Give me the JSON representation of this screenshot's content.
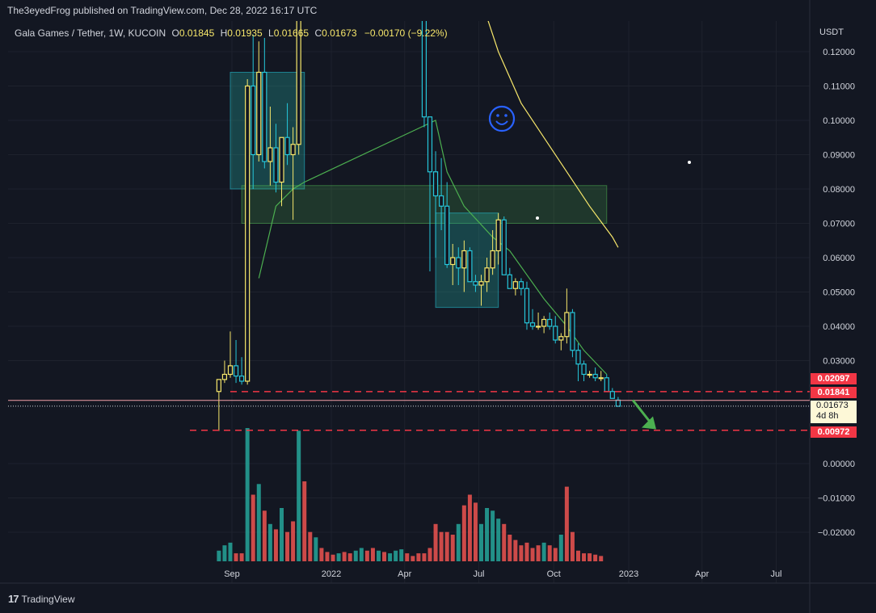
{
  "header": {
    "published": "The3eyedFrog published on TradingView.com, Dec 28, 2022 16:17 UTC",
    "symbol": "Gala Games / Tether, 1W, KUCOIN",
    "open_label": "O",
    "open": "0.01845",
    "high_label": "H",
    "high": "0.01935",
    "low_label": "L",
    "low": "0.01665",
    "close_label": "C",
    "close": "0.01673",
    "change": "−0.00170 (−9.22%)"
  },
  "footer": {
    "brand": "TradingView"
  },
  "colors": {
    "up": "#f7e76b",
    "down": "#26c6da",
    "vol_up": "#26a69a",
    "vol_down": "#ef5350",
    "ma_fast": "#4caf50",
    "ma_slow": "#f7e76b",
    "level": "#f23645"
  },
  "chart_data": {
    "type": "candlestick",
    "currency": "USDT",
    "y_ticks": [
      "0.12000",
      "0.11000",
      "0.10000",
      "0.09000",
      "0.08000",
      "0.07000",
      "0.06000",
      "0.05000",
      "0.04000",
      "0.03000",
      "0.00000",
      "−0.01000",
      "−0.02000"
    ],
    "x_ticks": [
      "Sep",
      "2022",
      "Apr",
      "Jul",
      "Oct",
      "2023",
      "Apr",
      "Jul"
    ],
    "price_tags": {
      "level_high": "0.02097",
      "level_mid": "0.01841",
      "current": "0.01673",
      "current_countdown": "4d 8h",
      "level_low": "0.00972"
    },
    "candles": [
      {
        "t": "2021-08-16",
        "o": 0.021,
        "h": 0.024,
        "l": 0.0095,
        "c": 0.0245
      },
      {
        "t": "2021-08-23",
        "o": 0.0245,
        "h": 0.03,
        "l": 0.0235,
        "c": 0.026
      },
      {
        "t": "2021-08-30",
        "o": 0.026,
        "h": 0.0385,
        "l": 0.025,
        "c": 0.0285
      },
      {
        "t": "2021-09-06",
        "o": 0.0285,
        "h": 0.036,
        "l": 0.0235,
        "c": 0.0255
      },
      {
        "t": "2021-09-13",
        "o": 0.0255,
        "h": 0.031,
        "l": 0.023,
        "c": 0.024
      },
      {
        "t": "2021-09-20",
        "o": 0.024,
        "h": 0.112,
        "l": 0.023,
        "c": 0.11
      },
      {
        "t": "2021-09-27",
        "o": 0.11,
        "h": 0.125,
        "l": 0.08,
        "c": 0.09
      },
      {
        "t": "2021-10-04",
        "o": 0.09,
        "h": 0.123,
        "l": 0.088,
        "c": 0.114
      },
      {
        "t": "2021-10-11",
        "o": 0.114,
        "h": 0.124,
        "l": 0.086,
        "c": 0.088
      },
      {
        "t": "2021-10-18",
        "o": 0.088,
        "h": 0.104,
        "l": 0.081,
        "c": 0.092
      },
      {
        "t": "2021-10-25",
        "o": 0.092,
        "h": 0.099,
        "l": 0.079,
        "c": 0.082
      },
      {
        "t": "2021-11-01",
        "o": 0.082,
        "h": 0.095,
        "l": 0.075,
        "c": 0.095
      },
      {
        "t": "2021-11-08",
        "o": 0.095,
        "h": 0.105,
        "l": 0.087,
        "c": 0.09
      },
      {
        "t": "2021-11-15",
        "o": 0.09,
        "h": 0.098,
        "l": 0.071,
        "c": 0.093
      },
      {
        "t": "2021-11-22",
        "o": 0.093,
        "h": 0.13,
        "l": 0.09,
        "c": 0.13
      },
      {
        "t": "2022-04-25",
        "o": 0.13,
        "h": 0.13,
        "l": 0.098,
        "c": 0.101
      },
      {
        "t": "2022-05-02",
        "o": 0.101,
        "h": 0.1,
        "l": 0.056,
        "c": 0.085
      },
      {
        "t": "2022-05-09",
        "o": 0.085,
        "h": 0.091,
        "l": 0.06,
        "c": 0.078
      },
      {
        "t": "2022-05-16",
        "o": 0.078,
        "h": 0.089,
        "l": 0.068,
        "c": 0.075
      },
      {
        "t": "2022-05-23",
        "o": 0.075,
        "h": 0.082,
        "l": 0.057,
        "c": 0.058
      },
      {
        "t": "2022-05-30",
        "o": 0.058,
        "h": 0.064,
        "l": 0.052,
        "c": 0.06
      },
      {
        "t": "2022-06-06",
        "o": 0.06,
        "h": 0.063,
        "l": 0.052,
        "c": 0.057
      },
      {
        "t": "2022-06-13",
        "o": 0.057,
        "h": 0.065,
        "l": 0.05,
        "c": 0.062
      },
      {
        "t": "2022-06-20",
        "o": 0.062,
        "h": 0.063,
        "l": 0.053,
        "c": 0.053
      },
      {
        "t": "2022-06-27",
        "o": 0.053,
        "h": 0.055,
        "l": 0.05,
        "c": 0.052
      },
      {
        "t": "2022-07-04",
        "o": 0.052,
        "h": 0.055,
        "l": 0.046,
        "c": 0.053
      },
      {
        "t": "2022-07-11",
        "o": 0.053,
        "h": 0.06,
        "l": 0.05,
        "c": 0.057
      },
      {
        "t": "2022-07-18",
        "o": 0.057,
        "h": 0.068,
        "l": 0.055,
        "c": 0.062
      },
      {
        "t": "2022-07-25",
        "o": 0.062,
        "h": 0.073,
        "l": 0.058,
        "c": 0.071
      },
      {
        "t": "2022-08-01",
        "o": 0.071,
        "h": 0.072,
        "l": 0.055,
        "c": 0.055
      },
      {
        "t": "2022-08-08",
        "o": 0.055,
        "h": 0.057,
        "l": 0.051,
        "c": 0.051
      },
      {
        "t": "2022-08-15",
        "o": 0.051,
        "h": 0.054,
        "l": 0.049,
        "c": 0.053
      },
      {
        "t": "2022-08-22",
        "o": 0.053,
        "h": 0.054,
        "l": 0.049,
        "c": 0.051
      },
      {
        "t": "2022-08-29",
        "o": 0.051,
        "h": 0.053,
        "l": 0.039,
        "c": 0.041
      },
      {
        "t": "2022-09-05",
        "o": 0.041,
        "h": 0.045,
        "l": 0.039,
        "c": 0.04
      },
      {
        "t": "2022-09-12",
        "o": 0.04,
        "h": 0.044,
        "l": 0.039,
        "c": 0.04
      },
      {
        "t": "2022-09-19",
        "o": 0.04,
        "h": 0.043,
        "l": 0.038,
        "c": 0.042
      },
      {
        "t": "2022-09-26",
        "o": 0.042,
        "h": 0.044,
        "l": 0.039,
        "c": 0.04
      },
      {
        "t": "2022-10-03",
        "o": 0.04,
        "h": 0.043,
        "l": 0.035,
        "c": 0.036
      },
      {
        "t": "2022-10-10",
        "o": 0.036,
        "h": 0.038,
        "l": 0.033,
        "c": 0.037
      },
      {
        "t": "2022-10-17",
        "o": 0.037,
        "h": 0.051,
        "l": 0.035,
        "c": 0.044
      },
      {
        "t": "2022-10-24",
        "o": 0.044,
        "h": 0.045,
        "l": 0.031,
        "c": 0.033
      },
      {
        "t": "2022-10-31",
        "o": 0.033,
        "h": 0.035,
        "l": 0.024,
        "c": 0.029
      },
      {
        "t": "2022-11-07",
        "o": 0.029,
        "h": 0.03,
        "l": 0.024,
        "c": 0.026
      },
      {
        "t": "2022-11-14",
        "o": 0.026,
        "h": 0.027,
        "l": 0.025,
        "c": 0.026
      },
      {
        "t": "2022-11-21",
        "o": 0.026,
        "h": 0.028,
        "l": 0.024,
        "c": 0.025
      },
      {
        "t": "2022-11-28",
        "o": 0.025,
        "h": 0.027,
        "l": 0.024,
        "c": 0.025
      },
      {
        "t": "2022-12-05",
        "o": 0.025,
        "h": 0.026,
        "l": 0.021,
        "c": 0.021
      },
      {
        "t": "2022-12-12",
        "o": 0.021,
        "h": 0.022,
        "l": 0.019,
        "c": 0.019
      },
      {
        "t": "2022-12-19",
        "o": 0.0185,
        "h": 0.0194,
        "l": 0.0167,
        "c": 0.0167
      }
    ],
    "volume": [
      {
        "t": "2021-08-16",
        "v": 0.08,
        "up": true
      },
      {
        "t": "2021-08-23",
        "v": 0.12,
        "up": true
      },
      {
        "t": "2021-08-30",
        "v": 0.14,
        "up": true
      },
      {
        "t": "2021-09-06",
        "v": 0.06,
        "up": false
      },
      {
        "t": "2021-09-13",
        "v": 0.06,
        "up": false
      },
      {
        "t": "2021-09-20",
        "v": 1.0,
        "up": true
      },
      {
        "t": "2021-09-27",
        "v": 0.5,
        "up": false
      },
      {
        "t": "2021-10-04",
        "v": 0.58,
        "up": true
      },
      {
        "t": "2021-10-11",
        "v": 0.38,
        "up": false
      },
      {
        "t": "2021-10-18",
        "v": 0.28,
        "up": true
      },
      {
        "t": "2021-10-25",
        "v": 0.24,
        "up": false
      },
      {
        "t": "2021-11-01",
        "v": 0.4,
        "up": true
      },
      {
        "t": "2021-11-08",
        "v": 0.22,
        "up": false
      },
      {
        "t": "2021-11-15",
        "v": 0.3,
        "up": false
      },
      {
        "t": "2021-11-22",
        "v": 0.98,
        "up": true
      },
      {
        "t": "2021-11-29",
        "v": 0.6,
        "up": false
      },
      {
        "t": "2021-12-06",
        "v": 0.22,
        "up": false
      },
      {
        "t": "2021-12-13",
        "v": 0.18,
        "up": true
      },
      {
        "t": "2021-12-20",
        "v": 0.1,
        "up": false
      },
      {
        "t": "2021-12-27",
        "v": 0.07,
        "up": false
      },
      {
        "t": "2022-01-03",
        "v": 0.05,
        "up": false
      },
      {
        "t": "2022-01-10",
        "v": 0.06,
        "up": true
      },
      {
        "t": "2022-01-17",
        "v": 0.07,
        "up": false
      },
      {
        "t": "2022-01-24",
        "v": 0.06,
        "up": false
      },
      {
        "t": "2022-01-31",
        "v": 0.08,
        "up": true
      },
      {
        "t": "2022-02-07",
        "v": 0.1,
        "up": true
      },
      {
        "t": "2022-02-14",
        "v": 0.08,
        "up": false
      },
      {
        "t": "2022-02-21",
        "v": 0.1,
        "up": false
      },
      {
        "t": "2022-02-28",
        "v": 0.08,
        "up": true
      },
      {
        "t": "2022-03-07",
        "v": 0.07,
        "up": false
      },
      {
        "t": "2022-03-14",
        "v": 0.06,
        "up": true
      },
      {
        "t": "2022-03-21",
        "v": 0.08,
        "up": true
      },
      {
        "t": "2022-03-28",
        "v": 0.09,
        "up": true
      },
      {
        "t": "2022-04-04",
        "v": 0.06,
        "up": false
      },
      {
        "t": "2022-04-11",
        "v": 0.04,
        "up": false
      },
      {
        "t": "2022-04-18",
        "v": 0.06,
        "up": false
      },
      {
        "t": "2022-04-25",
        "v": 0.06,
        "up": false
      },
      {
        "t": "2022-05-02",
        "v": 0.1,
        "up": false
      },
      {
        "t": "2022-05-09",
        "v": 0.28,
        "up": false
      },
      {
        "t": "2022-05-16",
        "v": 0.22,
        "up": false
      },
      {
        "t": "2022-05-23",
        "v": 0.22,
        "up": false
      },
      {
        "t": "2022-05-30",
        "v": 0.2,
        "up": false
      },
      {
        "t": "2022-06-06",
        "v": 0.28,
        "up": true
      },
      {
        "t": "2022-06-13",
        "v": 0.42,
        "up": false
      },
      {
        "t": "2022-06-20",
        "v": 0.5,
        "up": false
      },
      {
        "t": "2022-06-27",
        "v": 0.44,
        "up": false
      },
      {
        "t": "2022-07-04",
        "v": 0.28,
        "up": true
      },
      {
        "t": "2022-07-11",
        "v": 0.4,
        "up": true
      },
      {
        "t": "2022-07-18",
        "v": 0.38,
        "up": true
      },
      {
        "t": "2022-07-25",
        "v": 0.32,
        "up": true
      },
      {
        "t": "2022-08-01",
        "v": 0.28,
        "up": false
      },
      {
        "t": "2022-08-08",
        "v": 0.2,
        "up": false
      },
      {
        "t": "2022-08-15",
        "v": 0.16,
        "up": false
      },
      {
        "t": "2022-08-22",
        "v": 0.12,
        "up": false
      },
      {
        "t": "2022-08-29",
        "v": 0.14,
        "up": false
      },
      {
        "t": "2022-09-05",
        "v": 0.1,
        "up": false
      },
      {
        "t": "2022-09-12",
        "v": 0.12,
        "up": false
      },
      {
        "t": "2022-09-19",
        "v": 0.14,
        "up": true
      },
      {
        "t": "2022-09-26",
        "v": 0.12,
        "up": false
      },
      {
        "t": "2022-10-03",
        "v": 0.1,
        "up": false
      },
      {
        "t": "2022-10-10",
        "v": 0.2,
        "up": true
      },
      {
        "t": "2022-10-17",
        "v": 0.56,
        "up": false
      },
      {
        "t": "2022-10-24",
        "v": 0.22,
        "up": false
      },
      {
        "t": "2022-10-31",
        "v": 0.08,
        "up": false
      },
      {
        "t": "2022-11-07",
        "v": 0.06,
        "up": false
      },
      {
        "t": "2022-11-14",
        "v": 0.06,
        "up": false
      },
      {
        "t": "2022-11-21",
        "v": 0.05,
        "up": false
      },
      {
        "t": "2022-11-28",
        "v": 0.04,
        "up": false
      }
    ],
    "ma_fast": [
      [
        "2021-10-04",
        0.054
      ],
      [
        "2021-10-25",
        0.075
      ],
      [
        "2021-11-15",
        0.08
      ],
      [
        "2021-11-29",
        0.082
      ],
      [
        "2022-05-09",
        0.1
      ],
      [
        "2022-05-23",
        0.085
      ],
      [
        "2022-06-13",
        0.075
      ],
      [
        "2022-07-18",
        0.066
      ],
      [
        "2022-08-08",
        0.062
      ],
      [
        "2022-08-29",
        0.055
      ],
      [
        "2022-09-19",
        0.048
      ],
      [
        "2022-10-17",
        0.04
      ],
      [
        "2022-11-07",
        0.033
      ],
      [
        "2022-12-05",
        0.026
      ]
    ],
    "ma_slow": [
      [
        "2022-06-27",
        0.14
      ],
      [
        "2022-07-25",
        0.12
      ],
      [
        "2022-08-22",
        0.105
      ],
      [
        "2022-09-19",
        0.095
      ],
      [
        "2022-10-17",
        0.085
      ],
      [
        "2022-11-14",
        0.075
      ],
      [
        "2022-12-12",
        0.066
      ],
      [
        "2022-12-19",
        0.063
      ]
    ],
    "zones": [
      {
        "x1": "2021-08-30",
        "x2": "2021-11-29",
        "y1": 0.08,
        "y2": 0.114,
        "color": "teal"
      },
      {
        "x1": "2021-09-13",
        "x2": "2022-12-05",
        "y1": 0.07,
        "y2": 0.081,
        "color": "green"
      },
      {
        "x1": "2022-05-09",
        "x2": "2022-07-25",
        "y1": 0.0455,
        "y2": 0.073,
        "color": "teal"
      }
    ],
    "levels": [
      0.02097,
      0.01841,
      0.00972
    ],
    "current_price": 0.01673
  }
}
